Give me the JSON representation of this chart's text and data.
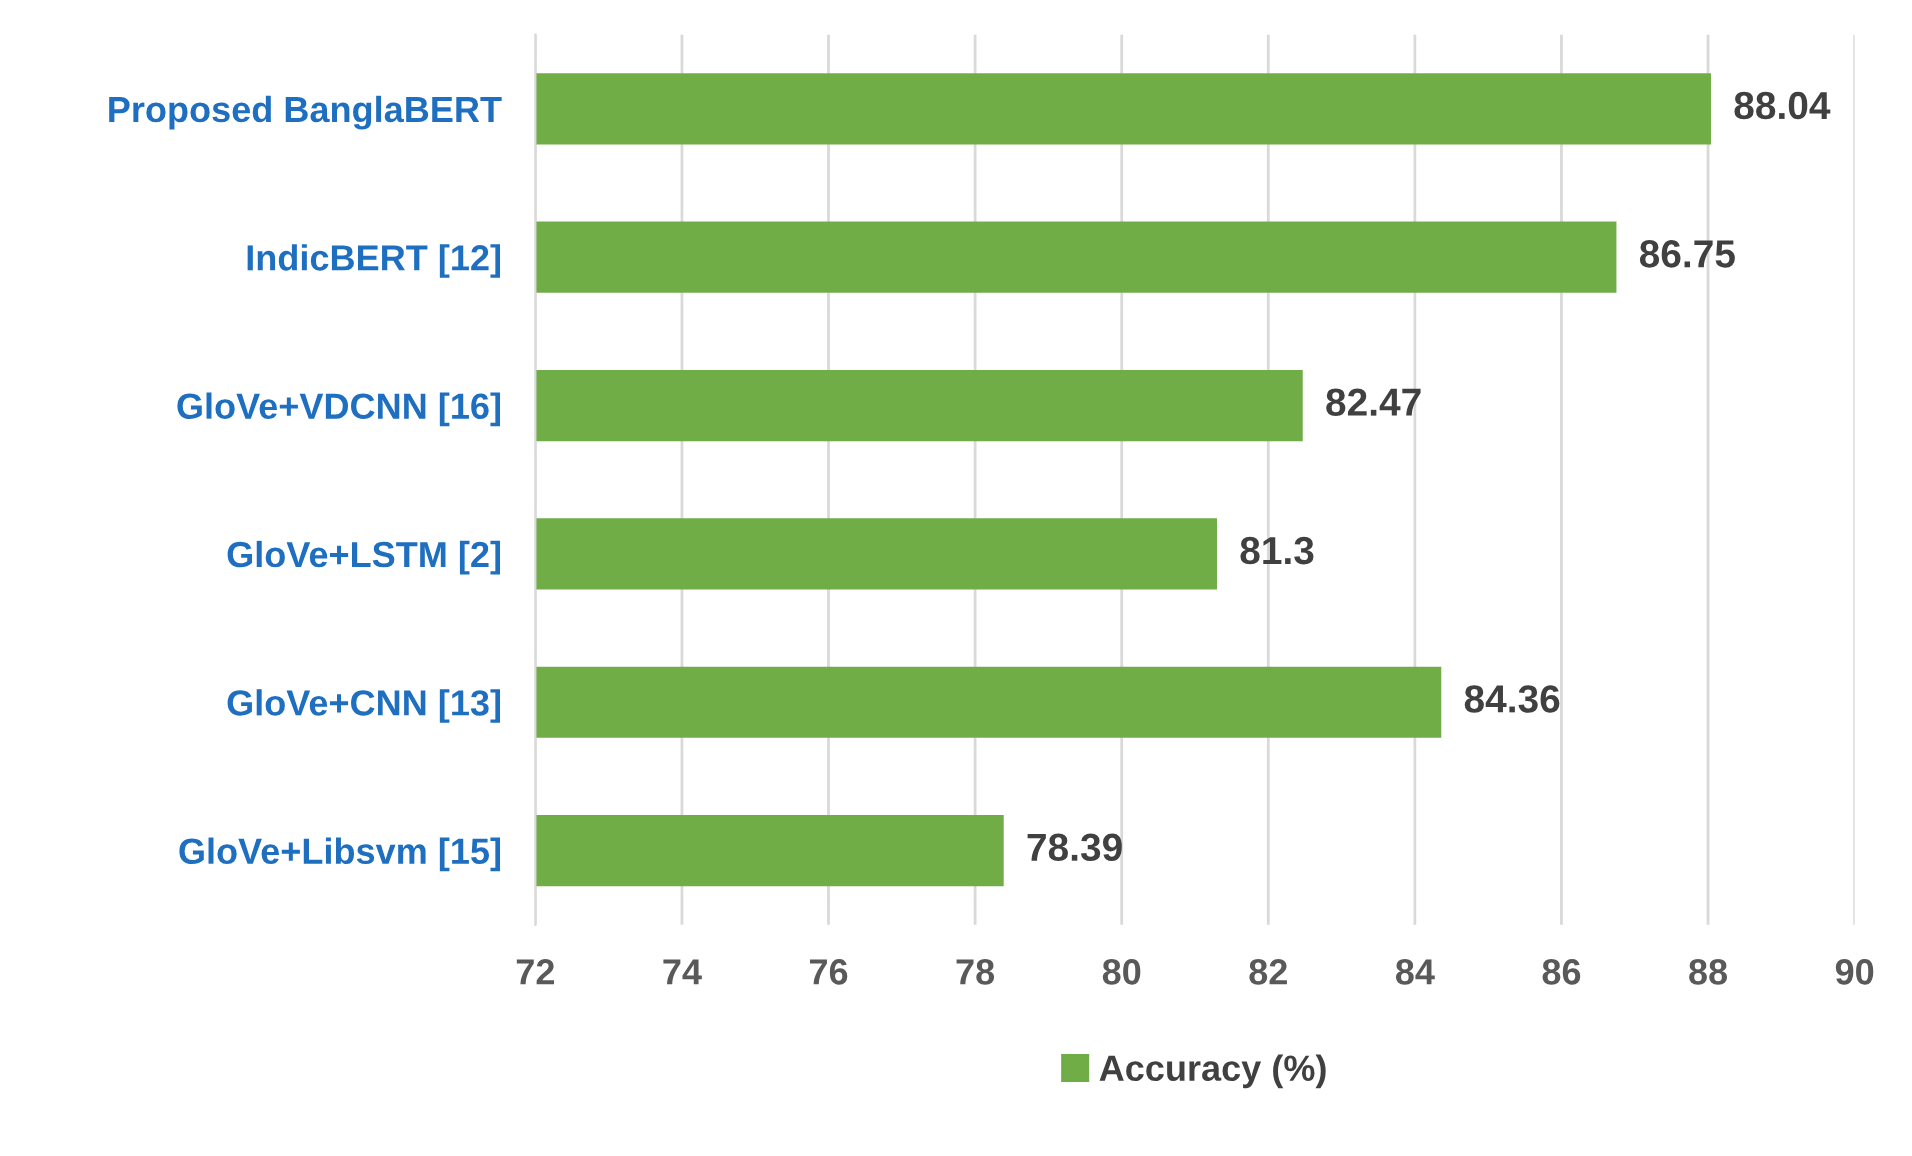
{
  "chart_data": {
    "type": "bar",
    "orientation": "horizontal",
    "categories": [
      "Proposed BanglaBERT",
      "IndicBERT [12]",
      "GloVe+VDCNN [16]",
      "GloVe+LSTM [2]",
      "GloVe+CNN [13]",
      "GloVe+Libsvm [15]"
    ],
    "series": [
      {
        "name": "Accuracy (%)",
        "color": "#70ad47",
        "values": [
          88.04,
          86.75,
          82.47,
          81.3,
          84.36,
          78.39
        ]
      }
    ],
    "value_labels": [
      "88.04",
      "86.75",
      "82.47",
      "81.3",
      "84.36",
      "78.39"
    ],
    "xlim": [
      72,
      90
    ],
    "xticks": [
      72,
      74,
      76,
      78,
      80,
      82,
      84,
      86,
      88,
      90
    ],
    "grid": "x",
    "legend": "bottom"
  }
}
